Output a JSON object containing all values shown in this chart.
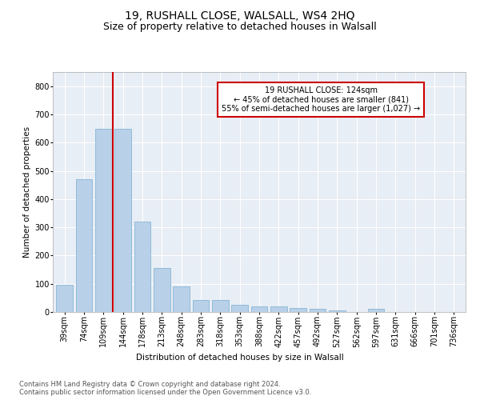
{
  "title1": "19, RUSHALL CLOSE, WALSALL, WS4 2HQ",
  "title2": "Size of property relative to detached houses in Walsall",
  "xlabel": "Distribution of detached houses by size in Walsall",
  "ylabel": "Number of detached properties",
  "categories": [
    "39sqm",
    "74sqm",
    "109sqm",
    "144sqm",
    "178sqm",
    "213sqm",
    "248sqm",
    "283sqm",
    "318sqm",
    "353sqm",
    "388sqm",
    "422sqm",
    "457sqm",
    "492sqm",
    "527sqm",
    "562sqm",
    "597sqm",
    "631sqm",
    "666sqm",
    "701sqm",
    "736sqm"
  ],
  "values": [
    95,
    470,
    648,
    648,
    320,
    155,
    90,
    42,
    42,
    25,
    20,
    20,
    15,
    10,
    7,
    0,
    10,
    0,
    0,
    0,
    0
  ],
  "bar_color": "#b8d0e8",
  "bar_edge_color": "#7aaed0",
  "vline_color": "#cc0000",
  "annotation_text": "19 RUSHALL CLOSE: 124sqm\n← 45% of detached houses are smaller (841)\n55% of semi-detached houses are larger (1,027) →",
  "annotation_box_color": "#ffffff",
  "annotation_box_edge": "#cc0000",
  "ylim": [
    0,
    850
  ],
  "yticks": [
    0,
    100,
    200,
    300,
    400,
    500,
    600,
    700,
    800
  ],
  "background_color": "#e8eef5",
  "grid_color": "#ffffff",
  "footer": "Contains HM Land Registry data © Crown copyright and database right 2024.\nContains public sector information licensed under the Open Government Licence v3.0.",
  "title1_fontsize": 10,
  "title2_fontsize": 9,
  "axis_label_fontsize": 7.5,
  "tick_fontsize": 7,
  "footer_fontsize": 6
}
